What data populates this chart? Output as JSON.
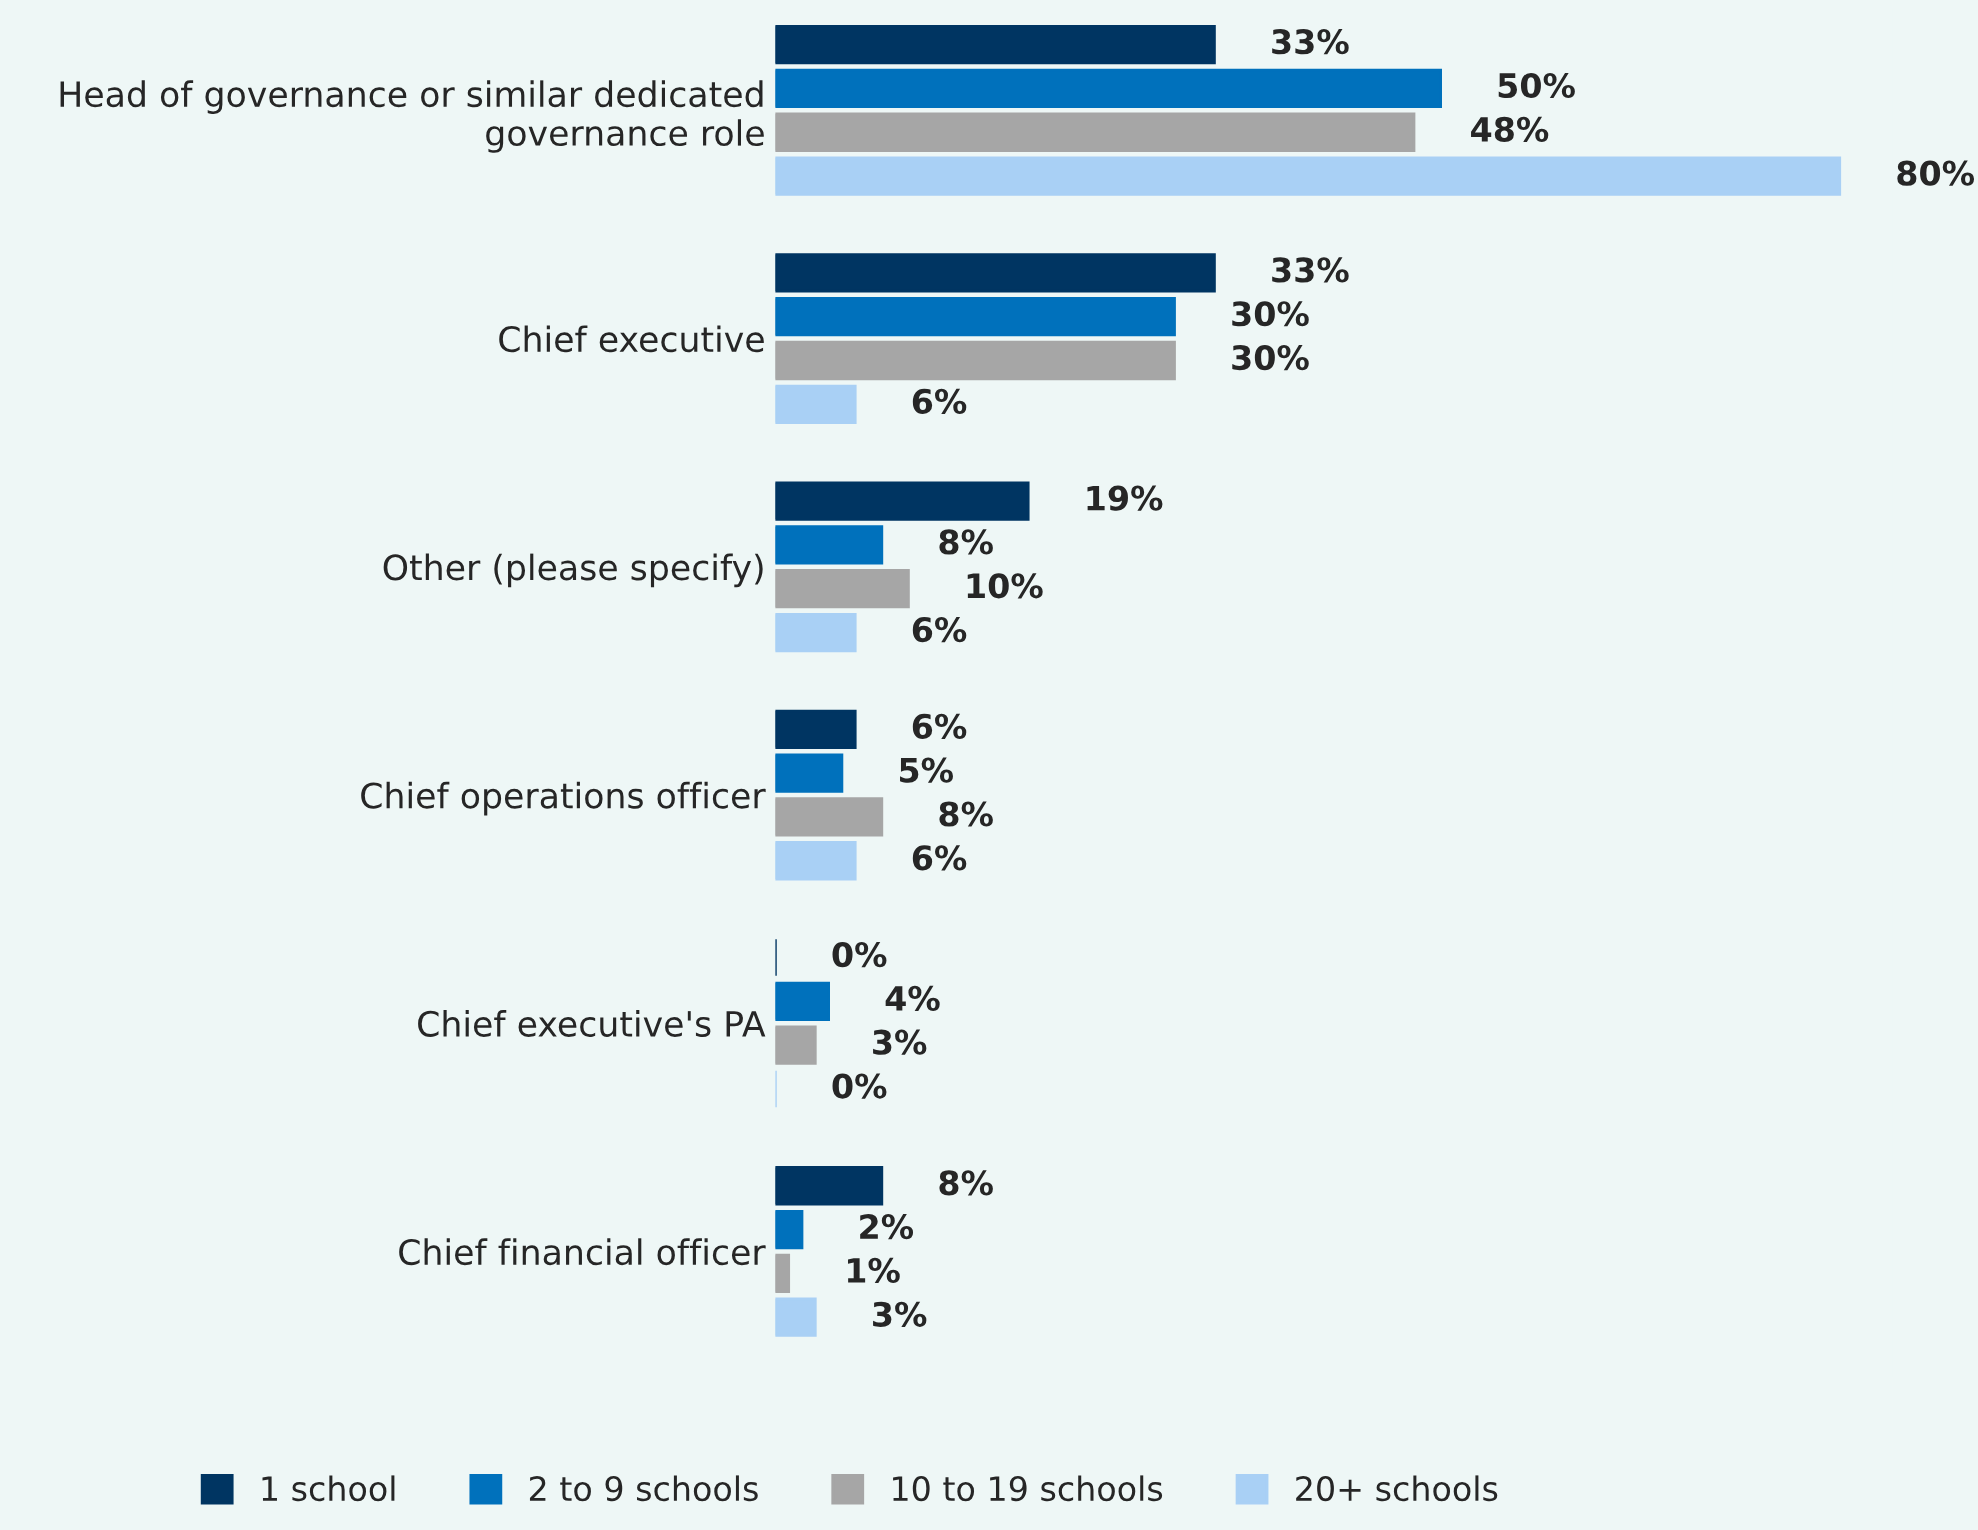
{
  "chart_data": {
    "type": "bar",
    "orientation": "horizontal",
    "categories": [
      "Head of governance or similar dedicated\ngovernance role",
      "Chief executive",
      "Other (please specify)",
      "Chief operations officer",
      "Chief executive's PA",
      "Chief financial officer"
    ],
    "series": [
      {
        "name": "1 school",
        "color": "#003562",
        "values": [
          33,
          33,
          19,
          6,
          0,
          8
        ],
        "value_labels": [
          "33%",
          "33%",
          "19%",
          "6%",
          "0%",
          "8%"
        ]
      },
      {
        "name": "2 to 9 schools",
        "color": "#0071bc",
        "values": [
          50,
          30,
          8,
          5,
          4,
          2
        ],
        "value_labels": [
          "50%",
          "30%",
          "8%",
          "5%",
          "4%",
          "2%"
        ]
      },
      {
        "name": "10 to 19 schools",
        "color": "#a6a6a6",
        "values": [
          48,
          30,
          10,
          8,
          3,
          1
        ],
        "value_labels": [
          "48%",
          "30%",
          "10%",
          "8%",
          "3%",
          "1%"
        ]
      },
      {
        "name": "20+ schools",
        "color": "#a9d0f5",
        "values": [
          80,
          6,
          6,
          6,
          0,
          3
        ],
        "value_labels": [
          "80%",
          "6%",
          "6%",
          "6%",
          "0%",
          "3%"
        ]
      }
    ],
    "tick_labels": "y",
    "grid": false,
    "legend": "bottom"
  }
}
